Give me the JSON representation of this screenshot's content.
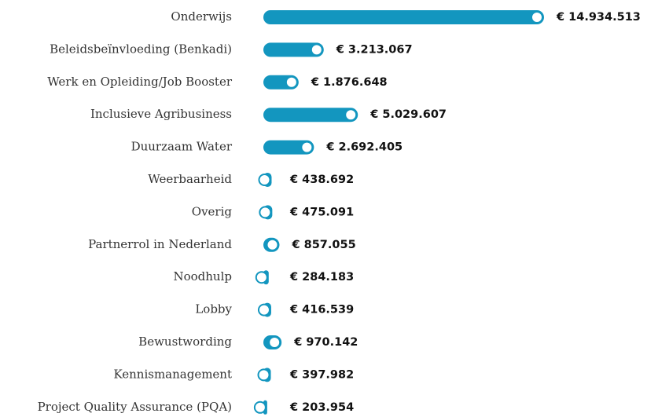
{
  "chart_data": {
    "type": "bar",
    "orientation": "horizontal",
    "color": "#1396bf",
    "categories": [
      "Onderwijs",
      "Beleidsbeïnvloeding (Benkadi)",
      "Werk en Opleiding/Job Booster",
      "Inclusieve Agribusiness",
      "Duurzaam Water",
      "Weerbaarheid",
      "Overig",
      "Partnerrol in Nederland",
      "Noodhulp",
      "Lobby",
      "Bewustwording",
      "Kennismanagement",
      "Project Quality Assurance (PQA)"
    ],
    "values": [
      14934513,
      3213067,
      1876648,
      5029607,
      2692405,
      438692,
      475091,
      857055,
      284183,
      416539,
      970142,
      397982,
      203954
    ],
    "value_labels": [
      "€ 14.934.513",
      "€ 3.213.067",
      "€ 1.876.648",
      "€ 5.029.607",
      "€ 2.692.405",
      "€ 438.692",
      "€ 475.091",
      "€ 857.055",
      "€ 284.183",
      "€ 416.539",
      "€ 970.142",
      "€ 397.982",
      "€ 203.954"
    ]
  }
}
